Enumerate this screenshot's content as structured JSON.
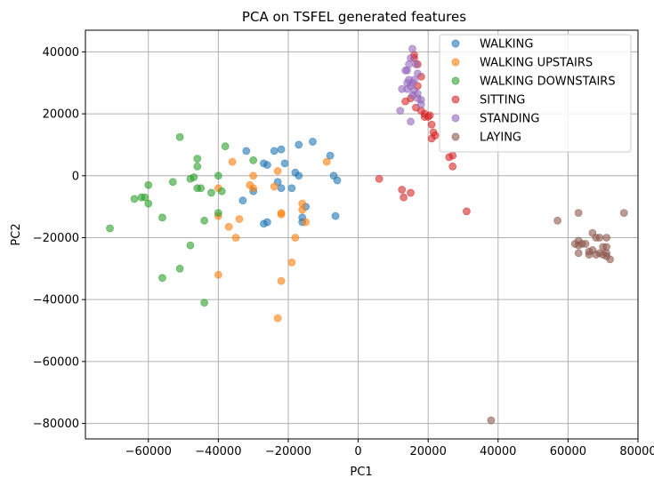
{
  "chart_data": {
    "type": "scatter",
    "title": "PCA on TSFEL generated features",
    "xlabel": "PC1",
    "ylabel": "PC2",
    "xlim": [
      -78000,
      80000
    ],
    "ylim": [
      -85000,
      47000
    ],
    "xticks": [
      -60000,
      -40000,
      -20000,
      0,
      20000,
      40000,
      60000,
      80000
    ],
    "yticks": [
      -80000,
      -60000,
      -40000,
      -20000,
      0,
      20000,
      40000
    ],
    "xtick_labels": [
      "−60000",
      "−40000",
      "−20000",
      "0",
      "20000",
      "40000",
      "60000",
      "80000"
    ],
    "ytick_labels": [
      "−80000",
      "−60000",
      "−40000",
      "−20000",
      "0",
      "20000",
      "40000"
    ],
    "grid": true,
    "legend_position": "top-right",
    "series": [
      {
        "name": "WALKING",
        "color": "#1f77b4",
        "points": [
          [
            -32000,
            8000
          ],
          [
            -27000,
            4000
          ],
          [
            -24000,
            8000
          ],
          [
            -22000,
            8500
          ],
          [
            -21000,
            4000
          ],
          [
            -18000,
            1000
          ],
          [
            -17000,
            10000
          ],
          [
            -13000,
            11000
          ],
          [
            -8000,
            6500
          ],
          [
            -7000,
            0
          ],
          [
            -6000,
            -1500
          ],
          [
            -6500,
            -13000
          ],
          [
            -16000,
            -13500
          ],
          [
            -15000,
            -10000
          ],
          [
            -16000,
            -15000
          ],
          [
            -19000,
            -4000
          ],
          [
            -22000,
            -4000
          ],
          [
            -23000,
            -2000
          ],
          [
            -26000,
            -15000
          ],
          [
            -27000,
            -15500
          ],
          [
            -30000,
            -5000
          ],
          [
            -33000,
            -8000
          ],
          [
            -26000,
            3500
          ],
          [
            -17000,
            0
          ]
        ]
      },
      {
        "name": "WALKING UPSTAIRS",
        "color": "#ff7f0e",
        "points": [
          [
            -36000,
            4500
          ],
          [
            -30000,
            0
          ],
          [
            -31000,
            -3000
          ],
          [
            -34000,
            -14000
          ],
          [
            -37000,
            -16500
          ],
          [
            -35000,
            -20000
          ],
          [
            -40000,
            -4000
          ],
          [
            -40000,
            -13000
          ],
          [
            -40000,
            -32000
          ],
          [
            -23000,
            1500
          ],
          [
            -24000,
            -3500
          ],
          [
            -22000,
            -12000
          ],
          [
            -22000,
            -12500
          ],
          [
            -18000,
            -20000
          ],
          [
            -19000,
            -28000
          ],
          [
            -22000,
            -34000
          ],
          [
            -23000,
            -46000
          ],
          [
            -16000,
            -9000
          ],
          [
            -15000,
            -15000
          ],
          [
            -9000,
            4500
          ],
          [
            -16000,
            -11000
          ],
          [
            -30000,
            -4000
          ]
        ]
      },
      {
        "name": "WALKING DOWNSTAIRS",
        "color": "#2ca02c",
        "points": [
          [
            -51000,
            12500
          ],
          [
            -46000,
            5500
          ],
          [
            -46000,
            3000
          ],
          [
            -38000,
            9500
          ],
          [
            -30000,
            5000
          ],
          [
            -53000,
            -2000
          ],
          [
            -47000,
            -500
          ],
          [
            -48000,
            -1000
          ],
          [
            -46000,
            -4000
          ],
          [
            -45000,
            -4000
          ],
          [
            -42000,
            -5500
          ],
          [
            -39000,
            -5000
          ],
          [
            -40000,
            0
          ],
          [
            -40000,
            -12000
          ],
          [
            -44000,
            -14500
          ],
          [
            -48000,
            -22500
          ],
          [
            -51000,
            -30000
          ],
          [
            -56000,
            -33000
          ],
          [
            -44000,
            -41000
          ],
          [
            -56000,
            -13500
          ],
          [
            -60000,
            -9000
          ],
          [
            -61000,
            -7000
          ],
          [
            -62000,
            -7000
          ],
          [
            -64000,
            -7500
          ],
          [
            -60000,
            -3000
          ],
          [
            -71000,
            -17000
          ]
        ]
      },
      {
        "name": "SITTING",
        "color": "#d62728",
        "points": [
          [
            15000,
            25000
          ],
          [
            16000,
            38000
          ],
          [
            17000,
            36000
          ],
          [
            18000,
            32000
          ],
          [
            16500,
            22000
          ],
          [
            19000,
            20000
          ],
          [
            20000,
            19000
          ],
          [
            21000,
            16500
          ],
          [
            22000,
            13000
          ],
          [
            21000,
            12000
          ],
          [
            26000,
            6000
          ],
          [
            27000,
            6500
          ],
          [
            27000,
            3000
          ],
          [
            31000,
            -11500
          ],
          [
            6000,
            -1000
          ],
          [
            12500,
            -4500
          ],
          [
            13000,
            -7000
          ],
          [
            15000,
            -5500
          ],
          [
            13500,
            24000
          ],
          [
            17000,
            29000
          ],
          [
            18000,
            21000
          ],
          [
            19000,
            19000
          ],
          [
            16000,
            39000
          ],
          [
            21500,
            14000
          ],
          [
            20500,
            19500
          ]
        ]
      },
      {
        "name": "STANDING",
        "color": "#9467bd",
        "points": [
          [
            15500,
            41000
          ],
          [
            15000,
            38000
          ],
          [
            14500,
            36000
          ],
          [
            14000,
            34000
          ],
          [
            13500,
            34000
          ],
          [
            14500,
            31000
          ],
          [
            15500,
            30000
          ],
          [
            16000,
            31000
          ],
          [
            15000,
            29000
          ],
          [
            14000,
            28000
          ],
          [
            12500,
            28000
          ],
          [
            16000,
            27500
          ],
          [
            17000,
            26500
          ],
          [
            15500,
            26000
          ],
          [
            17000,
            25000
          ],
          [
            18000,
            24500
          ],
          [
            18000,
            23000
          ],
          [
            12000,
            21000
          ],
          [
            15000,
            17500
          ],
          [
            17000,
            33000
          ],
          [
            16500,
            36000
          ],
          [
            14000,
            30000
          ]
        ]
      },
      {
        "name": "LAYING",
        "color": "#8c564b",
        "points": [
          [
            57000,
            -14500
          ],
          [
            62000,
            -22000
          ],
          [
            63000,
            -21000
          ],
          [
            63000,
            -22500
          ],
          [
            63000,
            -25000
          ],
          [
            63000,
            -12000
          ],
          [
            64000,
            -22000
          ],
          [
            65000,
            -22000
          ],
          [
            66000,
            -25500
          ],
          [
            66000,
            -24500
          ],
          [
            67000,
            -24000
          ],
          [
            67000,
            -18500
          ],
          [
            68000,
            -20000
          ],
          [
            69000,
            -20000
          ],
          [
            68000,
            -25500
          ],
          [
            69000,
            -25000
          ],
          [
            70000,
            -23000
          ],
          [
            71000,
            -20000
          ],
          [
            71000,
            -23000
          ],
          [
            71000,
            -25000
          ],
          [
            71000,
            -26000
          ],
          [
            72000,
            -27000
          ],
          [
            70000,
            -25500
          ],
          [
            76000,
            -12000
          ],
          [
            38000,
            -79000
          ]
        ]
      }
    ]
  }
}
